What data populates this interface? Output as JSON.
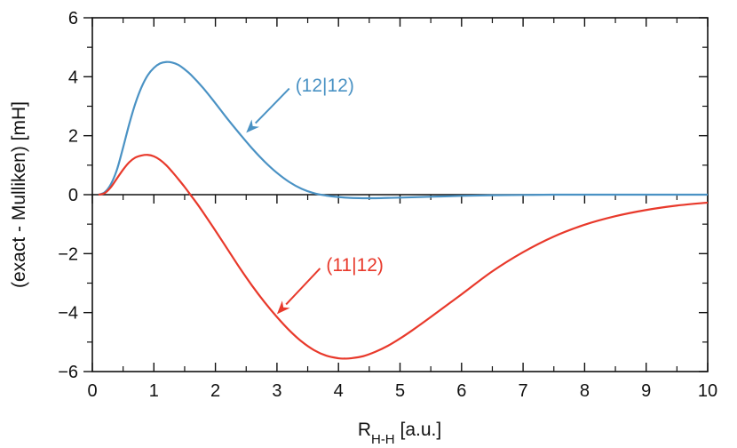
{
  "chart_data": {
    "type": "line",
    "title": "",
    "xlabel_main": "R",
    "xlabel_sub": "H-H",
    "xlabel_unit": " [a.u.]",
    "ylabel": "(exact - Mulliken) [mH]",
    "xlim": [
      0,
      10
    ],
    "ylim": [
      -6,
      6
    ],
    "xticks": [
      0,
      1,
      2,
      3,
      4,
      5,
      6,
      7,
      8,
      9,
      10
    ],
    "xtick_labels": [
      "0",
      "1",
      "2",
      "3",
      "4",
      "5",
      "6",
      "7",
      "8",
      "9",
      "10"
    ],
    "yticks": [
      -6,
      -4,
      -2,
      0,
      2,
      4,
      6
    ],
    "ytick_labels": [
      "−6",
      "−4",
      "−2",
      "0",
      "2",
      "4",
      "6"
    ],
    "grid": false,
    "zero_line": true,
    "colors": {
      "blue": "#4a92c4",
      "red": "#e8392b"
    },
    "series": [
      {
        "name": "(12|12)",
        "color": "#4a92c4",
        "x": [
          0.1,
          0.2,
          0.3,
          0.4,
          0.5,
          0.6,
          0.7,
          0.8,
          0.9,
          1.0,
          1.1,
          1.2,
          1.3,
          1.4,
          1.5,
          1.6,
          1.8,
          2.0,
          2.2,
          2.4,
          2.6,
          2.8,
          3.0,
          3.2,
          3.4,
          3.6,
          3.8,
          4.0,
          4.2,
          4.4,
          4.6,
          4.8,
          5.0,
          5.5,
          6.0,
          6.5,
          7.0,
          7.5,
          8.0,
          9.0,
          10.0
        ],
        "y": [
          0.0,
          0.08,
          0.35,
          0.85,
          1.6,
          2.4,
          3.1,
          3.65,
          4.05,
          4.3,
          4.45,
          4.5,
          4.48,
          4.4,
          4.25,
          4.07,
          3.62,
          3.1,
          2.56,
          2.05,
          1.56,
          1.12,
          0.74,
          0.43,
          0.2,
          0.05,
          -0.03,
          -0.08,
          -0.11,
          -0.12,
          -0.12,
          -0.11,
          -0.1,
          -0.07,
          -0.04,
          -0.02,
          -0.01,
          0.0,
          0.0,
          0.0,
          0.0
        ]
      },
      {
        "name": "(11|12)",
        "color": "#e8392b",
        "x": [
          0.1,
          0.2,
          0.3,
          0.4,
          0.5,
          0.6,
          0.7,
          0.8,
          0.9,
          1.0,
          1.1,
          1.2,
          1.3,
          1.4,
          1.5,
          1.6,
          1.7,
          1.8,
          2.0,
          2.2,
          2.4,
          2.6,
          2.8,
          3.0,
          3.2,
          3.4,
          3.6,
          3.8,
          4.0,
          4.1,
          4.2,
          4.4,
          4.6,
          4.8,
          5.0,
          5.2,
          5.5,
          6.0,
          6.5,
          7.0,
          7.5,
          8.0,
          8.5,
          9.0,
          9.5,
          10.0
        ],
        "y": [
          0.0,
          0.05,
          0.25,
          0.55,
          0.85,
          1.1,
          1.26,
          1.33,
          1.35,
          1.3,
          1.18,
          1.0,
          0.77,
          0.52,
          0.26,
          -0.02,
          -0.3,
          -0.6,
          -1.22,
          -1.86,
          -2.5,
          -3.1,
          -3.65,
          -4.15,
          -4.6,
          -4.98,
          -5.27,
          -5.46,
          -5.55,
          -5.56,
          -5.55,
          -5.48,
          -5.33,
          -5.13,
          -4.88,
          -4.6,
          -4.15,
          -3.38,
          -2.6,
          -1.95,
          -1.42,
          -1.02,
          -0.73,
          -0.52,
          -0.37,
          -0.27
        ]
      }
    ],
    "annotations": [
      {
        "text": "(12|12)",
        "color": "#4a92c4",
        "text_x": 3.3,
        "text_y": 3.5,
        "arrow_from": [
          3.2,
          3.6
        ],
        "arrow_to": [
          2.5,
          2.1
        ]
      },
      {
        "text": "(11|12)",
        "color": "#e8392b",
        "text_x": 3.8,
        "text_y": -2.6,
        "arrow_from": [
          3.7,
          -2.5
        ],
        "arrow_to": [
          3.0,
          -4.05
        ]
      }
    ]
  }
}
